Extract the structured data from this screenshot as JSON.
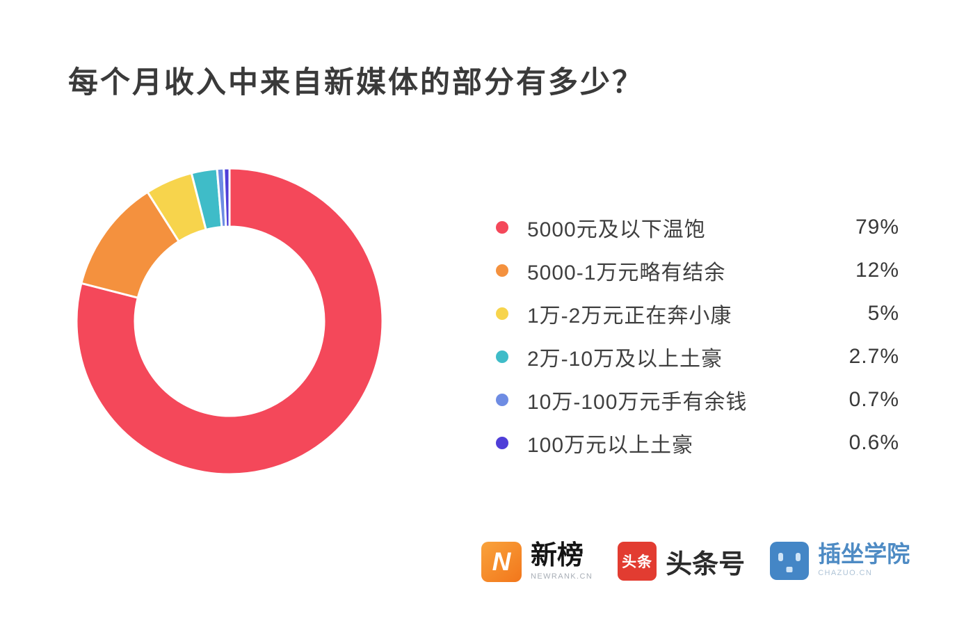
{
  "page": {
    "background": "#ffffff"
  },
  "chart_data": {
    "type": "pie",
    "subtype": "donut",
    "title": "每个月收入中来自新媒体的部分有多少？",
    "start_angle_deg": 0,
    "direction": "clockwise",
    "legend_position": "right",
    "inner_radius_ratio": 0.62,
    "slice_border_color": "#ffffff",
    "series": [
      {
        "label": "5000元及以下温饱",
        "value": 79,
        "value_label": "79%",
        "color": "#F4485A"
      },
      {
        "label": "5000-1万元略有结余",
        "value": 12,
        "value_label": "12%",
        "color": "#F4913E"
      },
      {
        "label": "1万-2万元正在奔小康",
        "value": 5,
        "value_label": "5%",
        "color": "#F7D44C"
      },
      {
        "label": "2万-10万及以上土豪",
        "value": 2.7,
        "value_label": "2.7%",
        "color": "#3FBCC8"
      },
      {
        "label": "10万-100万元手有余钱",
        "value": 0.7,
        "value_label": "0.7%",
        "color": "#6E8CE3"
      },
      {
        "label": "100万元以上土豪",
        "value": 0.6,
        "value_label": "0.6%",
        "color": "#4F3ED8"
      }
    ]
  },
  "footer": {
    "logos": [
      {
        "name": "newrank",
        "icon_text": "N",
        "title": "新榜",
        "subtitle": "NEWRANK.CN",
        "icon_color": "#F2761B",
        "icon_color_light": "#F9A33C"
      },
      {
        "name": "toutiao",
        "icon_text": "头条",
        "title": "头条号",
        "icon_color": "#E23C31"
      },
      {
        "name": "chazuo",
        "title": "插坐学院",
        "subtitle": "CHAZUO.CN",
        "icon_color": "#4486C6",
        "title_color": "#4E8BC4"
      }
    ]
  }
}
